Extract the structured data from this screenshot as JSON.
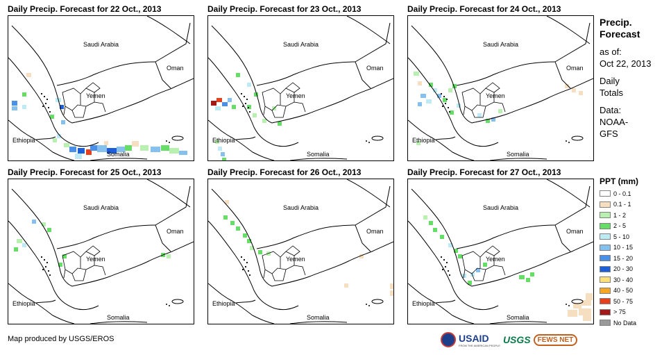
{
  "panels": [
    {
      "title": "Daily Precip. Forecast for 22 Oct., 2013",
      "labels": {
        "saudi": "Saudi Arabia",
        "oman": "Oman",
        "yemen": "Yemen",
        "ethiopia": "Ethiopia",
        "somalia": "Somalia"
      }
    },
    {
      "title": "Daily Precip. Forecast for 23 Oct., 2013",
      "labels": {
        "saudi": "Saudi Arabia",
        "oman": "Oman",
        "yemen": "Yemen",
        "ethiopia": "Ethiopia",
        "somalia": "Somalia"
      }
    },
    {
      "title": "Daily Precip. Forecast for 24 Oct., 2013",
      "labels": {
        "saudi": "Saudi Arabia",
        "oman": "Oman",
        "yemen": "Yemen",
        "ethiopia": "Ethiopia",
        "somalia": "Somalia"
      }
    },
    {
      "title": "Daily Precip. Forecast for 25 Oct., 2013",
      "labels": {
        "saudi": "Saudi Arabia",
        "oman": "Oman",
        "yemen": "Yemen",
        "ethiopia": "Ethiopia",
        "somalia": "Somalia"
      }
    },
    {
      "title": "Daily Precip. Forecast for 26 Oct., 2013",
      "labels": {
        "saudi": "Saudi Arabia",
        "oman": "Oman",
        "yemen": "Yemen",
        "ethiopia": "Ethiopia",
        "somalia": "Somalia"
      }
    },
    {
      "title": "Daily Precip. Forecast for 27 Oct., 2013",
      "labels": {
        "saudi": "Saudi Arabia",
        "oman": "Oman",
        "yemen": "Yemen",
        "ethiopia": "Ethiopia",
        "somalia": "Somalia"
      }
    }
  ],
  "sidebar": {
    "heading_line1": "Precip.",
    "heading_line2": "Forecast",
    "asof_label": "as of:",
    "asof_date": "Oct 22, 2013",
    "totals_line1": "Daily",
    "totals_line2": "Totals",
    "data_label": "Data:",
    "data_line1": "NOAA-",
    "data_line2": "GFS"
  },
  "legend": {
    "title": "PPT (mm)",
    "items": [
      {
        "label": "0 - 0.1",
        "color": "#ffffff"
      },
      {
        "label": "0.1 - 1",
        "color": "#f5dfc0"
      },
      {
        "label": "1 - 2",
        "color": "#b8f0b0"
      },
      {
        "label": "2 - 5",
        "color": "#66dd66"
      },
      {
        "label": "5 - 10",
        "color": "#bdeaf5"
      },
      {
        "label": "10 - 15",
        "color": "#86c0ee"
      },
      {
        "label": "15 - 20",
        "color": "#4a90e8"
      },
      {
        "label": "20 - 30",
        "color": "#1c5fd8"
      },
      {
        "label": "30 - 40",
        "color": "#fde07a"
      },
      {
        "label": "40 - 50",
        "color": "#f5a623"
      },
      {
        "label": "50 - 75",
        "color": "#e8401c"
      },
      {
        "label": "> 75",
        "color": "#a31818"
      },
      {
        "label": "No Data",
        "color": "#9a9a9a"
      }
    ]
  },
  "footer": {
    "credit": "Map produced by USGS/EROS",
    "logo_usaid": "USAID",
    "logo_usaid_tag": "FROM THE AMERICAN PEOPLE",
    "logo_usgs": "USGS",
    "logo_fews": "FEWS NET"
  }
}
